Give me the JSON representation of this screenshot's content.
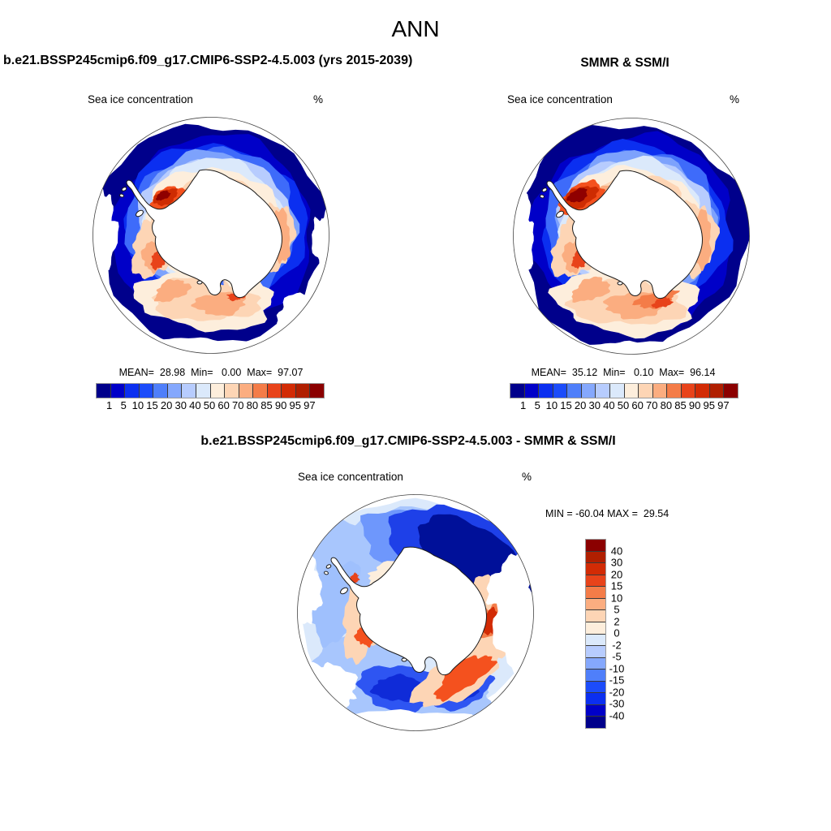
{
  "title": "ANN",
  "panels": {
    "model": {
      "title": "b.e21.BSSP245cmip6.f09_g17.CMIP6-SSP2-4.5.003 (yrs 2015-2039)",
      "field_label": "Sea ice concentration",
      "units": "%",
      "stats_line": "MEAN=  28.98  Min=   0.00  Max=  97.07"
    },
    "obs": {
      "title": "SMMR & SSM/I",
      "field_label": "Sea ice concentration",
      "units": "%",
      "stats_line": "MEAN=  35.12  Min=   0.10  Max=  96.14"
    },
    "diff": {
      "title": "b.e21.BSSP245cmip6.f09_g17.CMIP6-SSP2-4.5.003 - SMMR & SSM/I",
      "field_label": "Sea ice concentration",
      "units": "%",
      "minmax_line": "MIN = -60.04 MAX =  29.54"
    }
  },
  "chart_data": [
    {
      "type": "heatmap",
      "id": "model-map",
      "title": "b.e21.BSSP245cmip6.f09_g17.CMIP6-SSP2-4.5.003 (yrs 2015-2039)",
      "season": "ANN",
      "variable": "Sea ice concentration",
      "units": "%",
      "projection": "south polar stereographic (Antarctica / Southern Ocean)",
      "mean": 28.98,
      "min": 0.0,
      "max": 97.07,
      "levels": [
        1,
        5,
        10,
        15,
        20,
        30,
        40,
        50,
        60,
        70,
        80,
        85,
        90,
        95,
        97
      ],
      "palette": [
        "#00008B",
        "#0000C8",
        "#0B2FF0",
        "#1C4CFA",
        "#4F7FFA",
        "#85A8FD",
        "#B7CCFE",
        "#DBE9FB",
        "#FDEEDC",
        "#FDD5B5",
        "#FBAD80",
        "#F47C48",
        "#E8431A",
        "#D22B05",
        "#B01F00",
        "#8B0000"
      ],
      "legend_position": "bottom-horizontal"
    },
    {
      "type": "heatmap",
      "id": "obs-map",
      "title": "SMMR & SSM/I",
      "season": "ANN",
      "variable": "Sea ice concentration",
      "units": "%",
      "projection": "south polar stereographic (Antarctica / Southern Ocean)",
      "mean": 35.12,
      "min": 0.1,
      "max": 96.14,
      "levels": [
        1,
        5,
        10,
        15,
        20,
        30,
        40,
        50,
        60,
        70,
        80,
        85,
        90,
        95,
        97
      ],
      "palette": [
        "#00008B",
        "#0000C8",
        "#0B2FF0",
        "#1C4CFA",
        "#4F7FFA",
        "#85A8FD",
        "#B7CCFE",
        "#DBE9FB",
        "#FDEEDC",
        "#FDD5B5",
        "#FBAD80",
        "#F47C48",
        "#E8431A",
        "#D22B05",
        "#B01F00",
        "#8B0000"
      ],
      "legend_position": "bottom-horizontal"
    },
    {
      "type": "heatmap",
      "id": "difference-map",
      "title": "b.e21.BSSP245cmip6.f09_g17.CMIP6-SSP2-4.5.003 - SMMR & SSM/I",
      "season": "ANN",
      "variable": "Sea ice concentration difference",
      "units": "%",
      "projection": "south polar stereographic (Antarctica / Southern Ocean)",
      "min": -60.04,
      "max": 29.54,
      "levels": [
        40,
        30,
        20,
        15,
        10,
        5,
        2,
        0,
        -2,
        -5,
        -10,
        -15,
        -20,
        -30,
        -40
      ],
      "palette": [
        "#8B0000",
        "#B01F00",
        "#D22B05",
        "#E8431A",
        "#F47C48",
        "#FBAD80",
        "#FDD5B5",
        "#FDEEDC",
        "#DBE9FB",
        "#B7CCFE",
        "#85A8FD",
        "#4F7FFA",
        "#1C4CFA",
        "#0B2FF0",
        "#0000C8",
        "#00008B"
      ],
      "legend_position": "right-vertical"
    }
  ]
}
